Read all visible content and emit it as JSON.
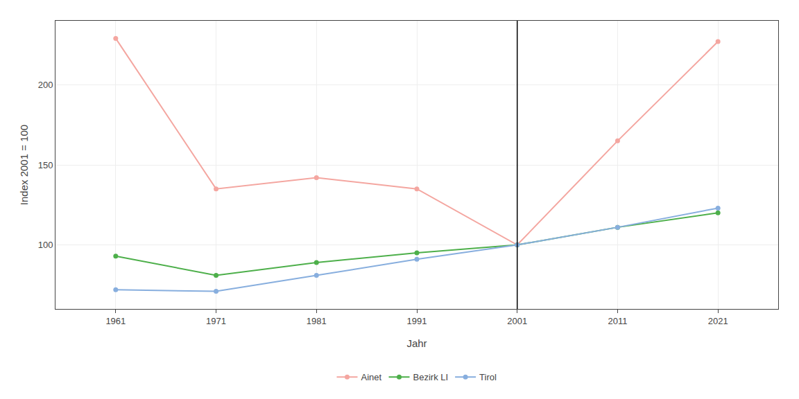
{
  "chart_data": {
    "type": "line",
    "x": [
      1961,
      1971,
      1981,
      1991,
      2001,
      2011,
      2021
    ],
    "series": [
      {
        "name": "Ainet",
        "color": "#F4A6A0",
        "values": [
          229,
          135,
          142,
          135,
          100,
          165,
          227
        ]
      },
      {
        "name": "Bezirk LI",
        "color": "#4DAF4A",
        "values": [
          93,
          81,
          89,
          95,
          100,
          111,
          120
        ]
      },
      {
        "name": "Tirol",
        "color": "#87AEDE",
        "values": [
          72,
          71,
          81,
          91,
          100,
          111,
          123
        ]
      }
    ],
    "xlabel": "Jahr",
    "ylabel": "Index 2001 = 100",
    "xlim": [
      1955,
      2027
    ],
    "xticks": [
      1961,
      1971,
      1981,
      1991,
      2001,
      2011,
      2021
    ],
    "ylim": [
      60,
      240
    ],
    "yticks": [
      100,
      150,
      200
    ],
    "vline_x": 2001,
    "marker": "circle",
    "grid": true,
    "legend": "bottom"
  }
}
